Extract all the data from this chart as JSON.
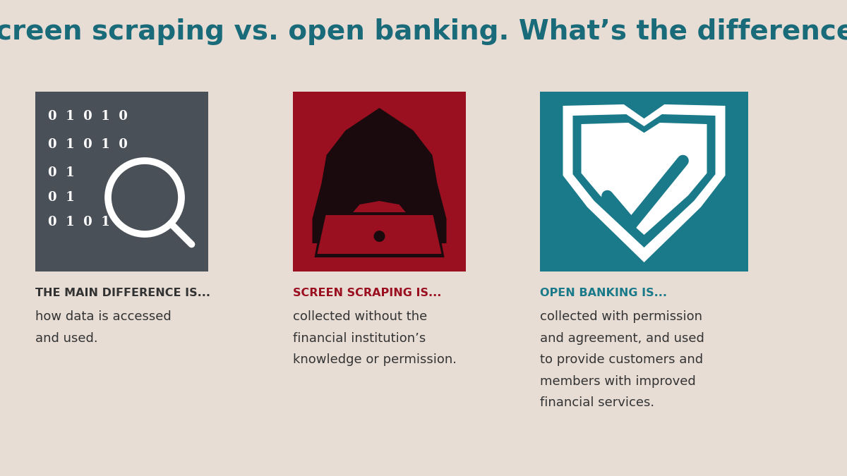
{
  "title": "Screen scraping vs. open banking. What’s the difference?",
  "title_color": "#1a6b7a",
  "bg_color": "#e8ddd5",
  "box1_color": "#4a5058",
  "box2_color": "#9b1020",
  "box3_color": "#1a7a8a",
  "label1": "THE MAIN DIFFERENCE IS...",
  "label2": "SCREEN SCRAPING IS...",
  "label3": "OPEN BANKING IS...",
  "label1_color": "#333333",
  "label2_color": "#9b1020",
  "label3_color": "#1a7a8a",
  "desc1": "how data is accessed\nand used.",
  "desc2": "collected without the\nfinancial institution’s\nknowledge or permission.",
  "desc3": "collected with permission\nand agreement, and used\nto provide customers and\nmembers with improved\nfinancial services.",
  "desc_color": "#333333",
  "figure_dark": "#1a0a0e",
  "white_color": "#ffffff"
}
